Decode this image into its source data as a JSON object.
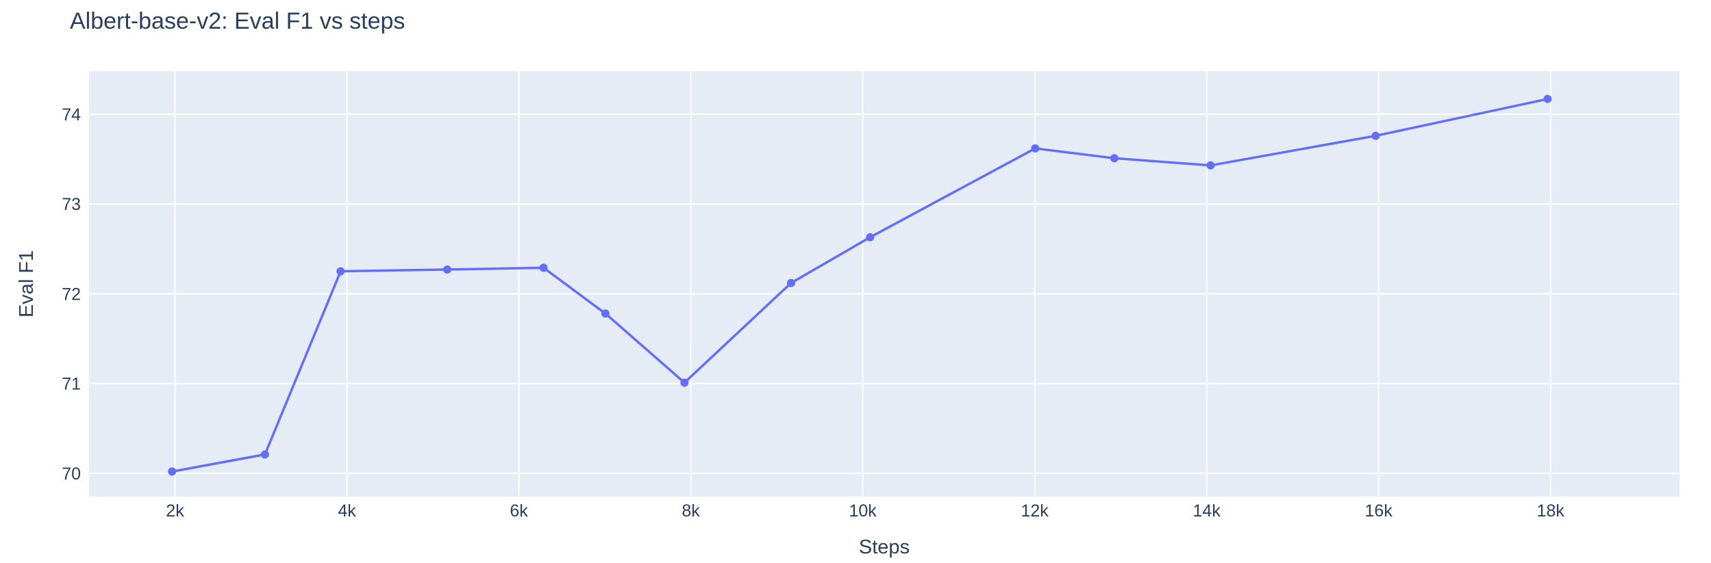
{
  "chart_data": {
    "type": "line",
    "title": "Albert-base-v2: Eval F1 vs steps",
    "xlabel": "Steps",
    "ylabel": "Eval F1",
    "xlim": [
      1000,
      19500
    ],
    "ylim": [
      69.74,
      74.48
    ],
    "x_ticks": [
      {
        "value": 2000,
        "label": "2k"
      },
      {
        "value": 4000,
        "label": "4k"
      },
      {
        "value": 6000,
        "label": "6k"
      },
      {
        "value": 8000,
        "label": "8k"
      },
      {
        "value": 10000,
        "label": "10k"
      },
      {
        "value": 12000,
        "label": "12k"
      },
      {
        "value": 14000,
        "label": "14k"
      },
      {
        "value": 16000,
        "label": "16k"
      },
      {
        "value": 18000,
        "label": "18k"
      }
    ],
    "y_ticks": [
      {
        "value": 70,
        "label": "70"
      },
      {
        "value": 71,
        "label": "71"
      },
      {
        "value": 72,
        "label": "72"
      },
      {
        "value": 73,
        "label": "73"
      },
      {
        "value": 74,
        "label": "74"
      }
    ],
    "grid": true,
    "series": [
      {
        "color": "#636efa",
        "x": [
          1966,
          3046,
          3926,
          5166,
          6286,
          7006,
          7926,
          9166,
          10086,
          12006,
          12926,
          14046,
          15966,
          17966
        ],
        "y": [
          70.02,
          70.21,
          72.25,
          72.27,
          72.29,
          71.78,
          71.01,
          72.12,
          72.63,
          73.62,
          73.51,
          73.43,
          73.76,
          74.17
        ]
      }
    ]
  },
  "colors": {
    "plot_background": "#e5ecf6",
    "grid": "#ffffff",
    "text": "#2a3f5f",
    "line": "#636efa"
  }
}
